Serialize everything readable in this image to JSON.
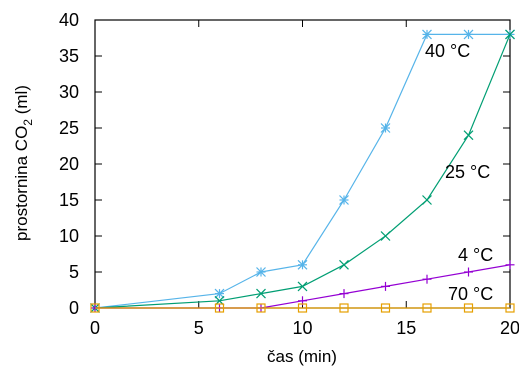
{
  "chart_data": {
    "type": "line",
    "xlabel": "čas (min)",
    "ylabel_main": "prostornina CO",
    "ylabel_sub": "2",
    "ylabel_unit": " (ml)",
    "xlim": [
      0,
      20
    ],
    "ylim": [
      0,
      40
    ],
    "xticks": [
      "0",
      "5",
      "10",
      "15",
      "20"
    ],
    "yticks": [
      "0",
      "5",
      "10",
      "15",
      "20",
      "25",
      "30",
      "35",
      "40"
    ],
    "grid": false,
    "series": [
      {
        "name": "40 °C",
        "color": "#56b4e9",
        "marker": "asterisk",
        "x": [
          0,
          6,
          8,
          10,
          12,
          14,
          16,
          18,
          20
        ],
        "y": [
          0,
          2,
          5,
          6,
          15,
          25,
          38,
          38,
          38
        ]
      },
      {
        "name": "25 °C",
        "color": "#009e73",
        "marker": "x",
        "x": [
          0,
          6,
          8,
          10,
          12,
          14,
          16,
          18,
          20
        ],
        "y": [
          0,
          1,
          2,
          3,
          6,
          10,
          15,
          24,
          38
        ]
      },
      {
        "name": "4 °C",
        "color": "#9400d3",
        "marker": "plus",
        "x": [
          0,
          6,
          8,
          10,
          12,
          14,
          16,
          18,
          20
        ],
        "y": [
          0,
          0,
          0,
          1,
          2,
          3,
          4,
          5,
          6
        ]
      },
      {
        "name": "70 °C",
        "color": "#e69f00",
        "marker": "square",
        "x": [
          0,
          6,
          8,
          10,
          12,
          14,
          16,
          18,
          20
        ],
        "y": [
          0,
          0,
          0,
          0,
          0,
          0,
          0,
          0,
          0
        ]
      }
    ]
  }
}
